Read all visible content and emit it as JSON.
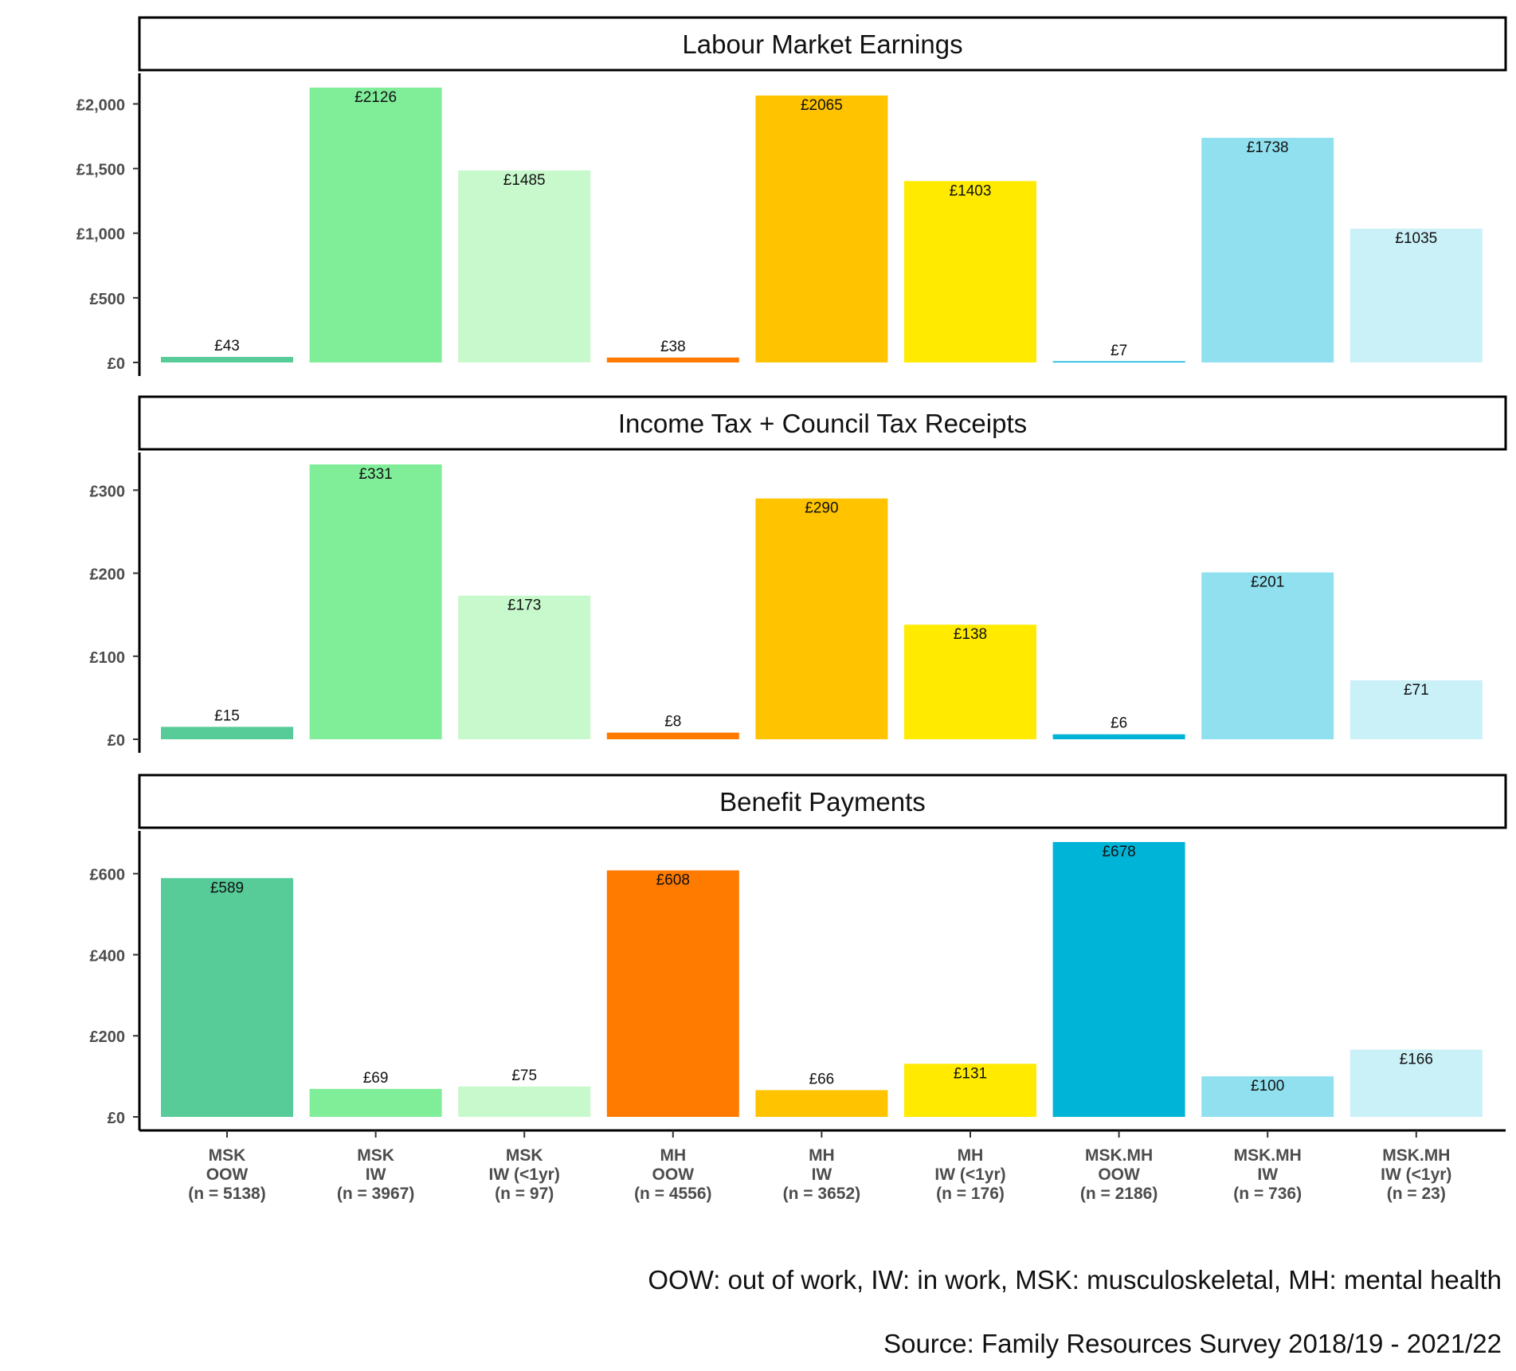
{
  "chart_data": {
    "type": "bar",
    "categories": [
      {
        "group": "MSK",
        "status": "OOW",
        "n": "(n = 5138)"
      },
      {
        "group": "MSK",
        "status": "IW",
        "n": "(n = 3967)"
      },
      {
        "group": "MSK",
        "status": "IW (<1yr)",
        "n": "(n = 97)"
      },
      {
        "group": "MH",
        "status": "OOW",
        "n": "(n = 4556)"
      },
      {
        "group": "MH",
        "status": "IW",
        "n": "(n = 3652)"
      },
      {
        "group": "MH",
        "status": "IW (<1yr)",
        "n": "(n = 176)"
      },
      {
        "group": "MSK.MH",
        "status": "OOW",
        "n": "(n = 2186)"
      },
      {
        "group": "MSK.MH",
        "status": "IW",
        "n": "(n = 736)"
      },
      {
        "group": "MSK.MH",
        "status": "IW (<1yr)",
        "n": "(n = 23)"
      }
    ],
    "colors": [
      "#57CC99",
      "#80ED99",
      "#C7F9CC",
      "#FF7B00",
      "#FFC300",
      "#FFEA00",
      "#00B4D8",
      "#90E0EF",
      "#CAF0F8"
    ],
    "panels": [
      {
        "title": "Labour Market Earnings",
        "values": [
          43,
          2126,
          1485,
          38,
          2065,
          1403,
          7,
          1738,
          1035
        ],
        "labels": [
          "£43",
          "£2126",
          "£1485",
          "£38",
          "£2065",
          "£1403",
          "£7",
          "£1738",
          "£1035"
        ],
        "ylim": [
          0,
          2126
        ],
        "ticks": [
          0,
          500,
          1000,
          1500,
          2000
        ],
        "tick_labels": [
          "£0",
          "£500",
          "£1,000",
          "£1,500",
          "£2,000"
        ]
      },
      {
        "title": "Income Tax + Council Tax Receipts",
        "values": [
          15,
          331,
          173,
          8,
          290,
          138,
          6,
          201,
          71
        ],
        "labels": [
          "£15",
          "£331",
          "£173",
          "£8",
          "£290",
          "£138",
          "£6",
          "£201",
          "£71"
        ],
        "ylim": [
          0,
          331
        ],
        "ticks": [
          0,
          100,
          200,
          300
        ],
        "tick_labels": [
          "£0",
          "£100",
          "£200",
          "£300"
        ]
      },
      {
        "title": "Benefit Payments",
        "values": [
          589,
          69,
          75,
          608,
          66,
          131,
          678,
          100,
          166
        ],
        "labels": [
          "£589",
          "£69",
          "£75",
          "£608",
          "£66",
          "£131",
          "£678",
          "£100",
          "£166"
        ],
        "ylim": [
          0,
          678
        ],
        "ticks": [
          0,
          200,
          400,
          600
        ],
        "tick_labels": [
          "£0",
          "£200",
          "£400",
          "£600"
        ]
      }
    ],
    "grid": false,
    "legend": "none"
  },
  "footnote": "OOW: out of work, IW: in work, MSK: musculoskeletal, MH: mental health",
  "source": "Source: Family Resources Survey 2018/19 - 2021/22"
}
